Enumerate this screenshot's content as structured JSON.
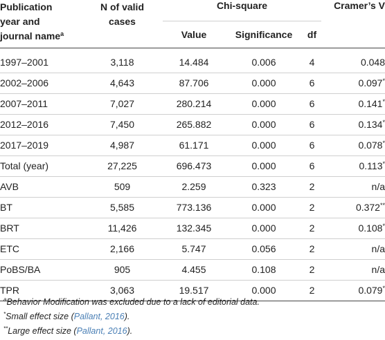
{
  "header": {
    "col1_line1": "Publication",
    "col1_line2": "year and",
    "col1_line3": "journal name",
    "col1_sup": "a",
    "col2_line1": "N of valid",
    "col2_line2": "cases",
    "chi_group": "Chi-square",
    "value": "Value",
    "significance": "Significance",
    "df": "df",
    "cramer": "Cramer’s V"
  },
  "rows": [
    {
      "label": "1997–2001",
      "n": "3,118",
      "value": "14.484",
      "sig": "0.006",
      "df": "4",
      "cv": "0.048",
      "mark": ""
    },
    {
      "label": "2002–2006",
      "n": "4,643",
      "value": "87.706",
      "sig": "0.000",
      "df": "6",
      "cv": "0.097",
      "mark": "*"
    },
    {
      "label": "2007–2011",
      "n": "7,027",
      "value": "280.214",
      "sig": "0.000",
      "df": "6",
      "cv": "0.141",
      "mark": "*"
    },
    {
      "label": "2012–2016",
      "n": "7,450",
      "value": "265.882",
      "sig": "0.000",
      "df": "6",
      "cv": "0.134",
      "mark": "*"
    },
    {
      "label": "2017–2019",
      "n": "4,987",
      "value": "61.171",
      "sig": "0.000",
      "df": "6",
      "cv": "0.078",
      "mark": "*"
    },
    {
      "label": "Total (year)",
      "n": "27,225",
      "value": "696.473",
      "sig": "0.000",
      "df": "6",
      "cv": "0.113",
      "mark": "*"
    },
    {
      "label": "AVB",
      "n": "509",
      "value": "2.259",
      "sig": "0.323",
      "df": "2",
      "cv": "n/a",
      "mark": ""
    },
    {
      "label": "BT",
      "n": "5,585",
      "value": "773.136",
      "sig": "0.000",
      "df": "2",
      "cv": "0.372",
      "mark": "**"
    },
    {
      "label": "BRT",
      "n": "11,426",
      "value": "132.345",
      "sig": "0.000",
      "df": "2",
      "cv": "0.108",
      "mark": "*"
    },
    {
      "label": "ETC",
      "n": "2,166",
      "value": "5.747",
      "sig": "0.056",
      "df": "2",
      "cv": "n/a",
      "mark": ""
    },
    {
      "label": "PoBS/BA",
      "n": "905",
      "value": "4.455",
      "sig": "0.108",
      "df": "2",
      "cv": "n/a",
      "mark": ""
    },
    {
      "label": "TPR",
      "n": "3,063",
      "value": "19.517",
      "sig": "0.000",
      "df": "2",
      "cv": "0.079",
      "mark": "*"
    }
  ],
  "notes": {
    "a_mark": "a",
    "a_text": "Behavior Modification was excluded due to a lack of editorial data.",
    "small_mark": "*",
    "small_text": "Small effect size (",
    "small_cite": "Pallant, 2016",
    "small_end": ").",
    "large_mark": "**",
    "large_text": "Large effect size (",
    "large_cite": "Pallant, 2016",
    "large_end": ")."
  },
  "colors": {
    "link": "#4a7fb5",
    "rule": "#444444",
    "divider": "#cfcfcf"
  }
}
